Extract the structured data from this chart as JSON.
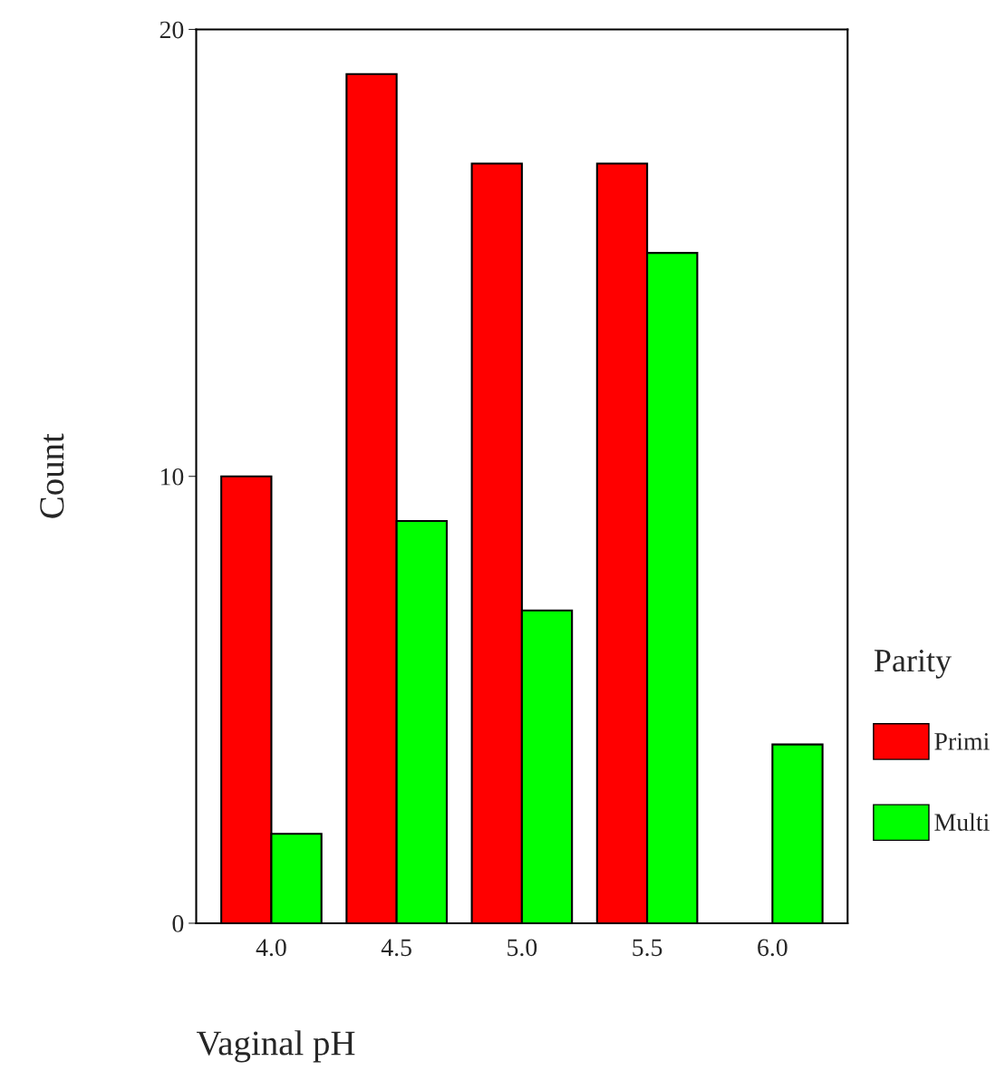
{
  "chart_data": {
    "type": "bar",
    "xlabel": "Vaginal pH",
    "ylabel": "Count",
    "legend_title": "Parity",
    "categories": [
      "4.0",
      "4.5",
      "5.0",
      "5.5",
      "6.0"
    ],
    "series": [
      {
        "name": "Primi",
        "color": "#ff0000",
        "values": [
          10,
          19,
          17,
          17,
          null
        ]
      },
      {
        "name": "Multi",
        "color": "#00ff00",
        "values": [
          2,
          9,
          7,
          15,
          4
        ]
      }
    ],
    "ylim": [
      0,
      20
    ],
    "yticks": [
      0,
      10,
      20
    ],
    "grid": false,
    "legend": "right"
  }
}
